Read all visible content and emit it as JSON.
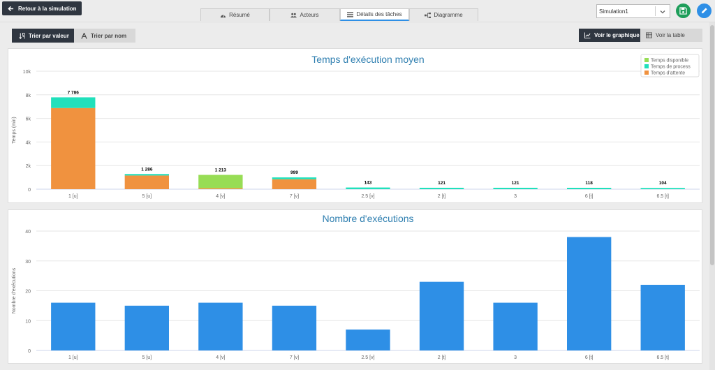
{
  "header": {
    "back_label": "Retour à la simulation",
    "tabs": [
      {
        "label": "Résumé",
        "icon": "dashboard-icon"
      },
      {
        "label": "Acteurs",
        "icon": "users-icon"
      },
      {
        "label": "Détails des tâches",
        "icon": "list-icon",
        "active": true
      },
      {
        "label": "Diagramme",
        "icon": "sitemap-icon"
      }
    ],
    "simulation_select": "Simulation1"
  },
  "toolbar": {
    "sort_by_value": "Trier par valeur",
    "sort_by_name": "Trier par nom",
    "view_chart": "Voir le graphique",
    "view_table": "Voir la table"
  },
  "colors": {
    "dark": "#2f3640",
    "accent": "#2e8fe6",
    "save": "#1e9e5a",
    "wait": "#f0923f",
    "process": "#20e0bb",
    "available": "#97dd55",
    "title": "#2f7fb0"
  },
  "chart_data": [
    {
      "type": "bar",
      "stacked": true,
      "title": "Temps d'exécution moyen",
      "xlabel": "",
      "ylabel": "Temps (min)",
      "ylim": [
        0,
        10000
      ],
      "yticks": [
        "0",
        "2k",
        "4k",
        "6k",
        "8k",
        "10k"
      ],
      "grid": true,
      "legend": "top-right",
      "categories": [
        "1 [u]",
        "5 [u]",
        "4 [v]",
        "7 [v]",
        "2.5 [v]",
        "2 [t]",
        "3",
        "6 [t]",
        "6.5 [t]"
      ],
      "totals": [
        "7 786",
        "1 286",
        "1 213",
        "999",
        "143",
        "121",
        "121",
        "118",
        "104"
      ],
      "series": [
        {
          "name": "Temps d'attente",
          "color": "#f0923f",
          "values": [
            6880,
            1160,
            80,
            840,
            0,
            0,
            0,
            0,
            0
          ]
        },
        {
          "name": "Temps de process",
          "color": "#20e0bb",
          "values": [
            906,
            126,
            0,
            159,
            143,
            121,
            121,
            118,
            104
          ]
        },
        {
          "name": "Temps disponible",
          "color": "#97dd55",
          "values": [
            0,
            0,
            1133,
            0,
            0,
            0,
            0,
            0,
            0
          ]
        }
      ]
    },
    {
      "type": "bar",
      "title": "Nombre d'exécutions",
      "xlabel": "",
      "ylabel": "Nombre d'exécutions",
      "ylim": [
        0,
        40
      ],
      "yticks": [
        "0",
        "10",
        "20",
        "30",
        "40"
      ],
      "grid": true,
      "categories": [
        "1 [u]",
        "5 [u]",
        "4 [v]",
        "7 [v]",
        "2.5 [v]",
        "2 [t]",
        "3",
        "6 [t]",
        "6.5 [t]"
      ],
      "values": [
        16,
        15,
        16,
        15,
        7,
        23,
        16,
        38,
        22
      ],
      "color": "#2e8fe6"
    }
  ]
}
